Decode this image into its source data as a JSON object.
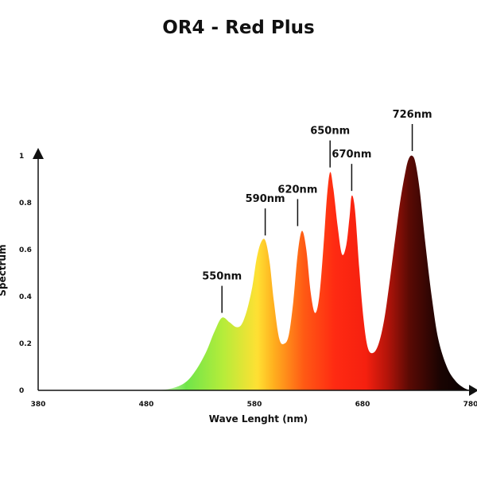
{
  "chart_data": {
    "type": "area",
    "title": "OR4 - Red Plus",
    "xlabel": "Wave Lenght (nm)",
    "ylabel": "Spectrum",
    "xlim": [
      380,
      780
    ],
    "ylim": [
      0,
      1
    ],
    "x_ticks": [
      "380",
      "480",
      "580",
      "680",
      "780"
    ],
    "y_ticks": [
      "0",
      "0.2",
      "0.4",
      "0.6",
      "0.8",
      "1"
    ],
    "series": [
      {
        "x": [
          480,
          500,
          515,
          525,
          535,
          543,
          550,
          557,
          563,
          568,
          573,
          578,
          582,
          586,
          590,
          594,
          598,
          603,
          608,
          612,
          616,
          620,
          624,
          628,
          632,
          636,
          640,
          644,
          647,
          650,
          653,
          657,
          661,
          665,
          668,
          670,
          673,
          677,
          681,
          685,
          690,
          695,
          700,
          705,
          710,
          715,
          720,
          723,
          726,
          729,
          733,
          738,
          744,
          750,
          758,
          766,
          774,
          780
        ],
        "y": [
          0,
          0.005,
          0.03,
          0.08,
          0.16,
          0.25,
          0.31,
          0.29,
          0.27,
          0.28,
          0.34,
          0.44,
          0.56,
          0.63,
          0.64,
          0.55,
          0.38,
          0.22,
          0.2,
          0.24,
          0.38,
          0.58,
          0.68,
          0.6,
          0.42,
          0.33,
          0.4,
          0.62,
          0.82,
          0.93,
          0.86,
          0.7,
          0.58,
          0.62,
          0.74,
          0.83,
          0.77,
          0.52,
          0.3,
          0.18,
          0.16,
          0.2,
          0.3,
          0.46,
          0.64,
          0.81,
          0.94,
          0.99,
          1.0,
          0.97,
          0.85,
          0.63,
          0.4,
          0.22,
          0.1,
          0.04,
          0.01,
          0
        ]
      }
    ],
    "colors": {
      "green": "#44d62c",
      "yellow": "#ffe033",
      "orange": "#ff7a1a",
      "red": "#ff2a12",
      "dark_red": "#5a0a04",
      "black": "#0a0202"
    },
    "annotations": [
      {
        "text": "550nm",
        "x": 550,
        "y": 0.31
      },
      {
        "text": "590nm",
        "x": 590,
        "y": 0.64
      },
      {
        "text": "620nm",
        "x": 620,
        "y": 0.68
      },
      {
        "text": "650nm",
        "x": 650,
        "y": 0.93
      },
      {
        "text": "670nm",
        "x": 670,
        "y": 0.83
      },
      {
        "text": "726nm",
        "x": 726,
        "y": 1.0
      }
    ],
    "grid": false,
    "legend": "none"
  }
}
